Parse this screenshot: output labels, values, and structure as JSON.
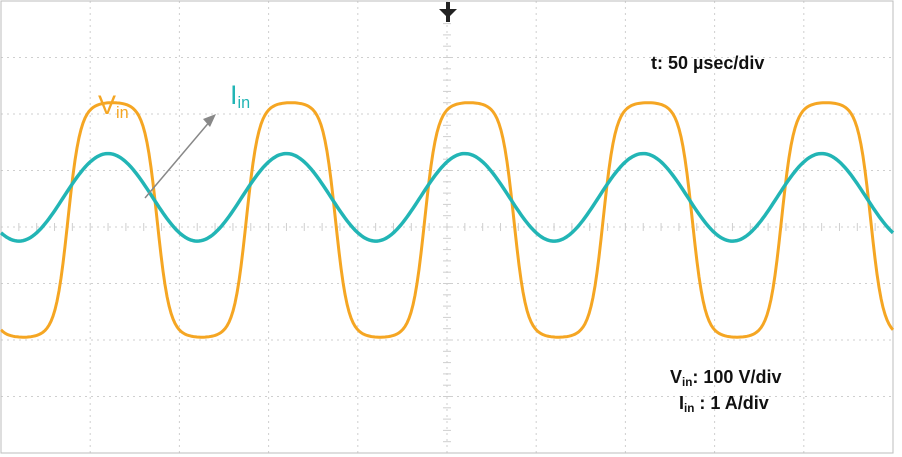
{
  "chart_data": {
    "type": "line",
    "subtype": "oscilloscope-capture",
    "grid": true,
    "grid_divisions": {
      "horizontal": 10,
      "vertical": 8
    },
    "timebase": {
      "text": "t: 50 µsec/div"
    },
    "scales": [
      {
        "symbol": "V",
        "subscript": "in",
        "sep": ": ",
        "value": "100 V/div"
      },
      {
        "symbol": "I",
        "subscript": "in",
        "sep": " : ",
        "value": "1 A/div"
      }
    ],
    "series": [
      {
        "name_symbol": "V",
        "name_subscript": "in",
        "color": "#f5a623",
        "units_per_div": 100,
        "unit": "V",
        "frequency_hz": 10000,
        "offset_div": 0.0,
        "peak_positive_div": 2.2,
        "peak_negative_div": -1.95,
        "phase_shift_div": 0.0,
        "waveshape": "flat-topped sine"
      },
      {
        "name_symbol": "I",
        "name_subscript": "in",
        "color": "#22b5b5",
        "units_per_div": 1,
        "unit": "A",
        "frequency_hz": 10000,
        "offset_div": 0.45,
        "peak_positive_div": 1.3,
        "peak_negative_div": -0.25,
        "phase_shift_div": -0.05,
        "waveshape": "sine"
      }
    ],
    "annotation_arrow": {
      "from": "V_in trace",
      "to": "I_in label"
    }
  }
}
